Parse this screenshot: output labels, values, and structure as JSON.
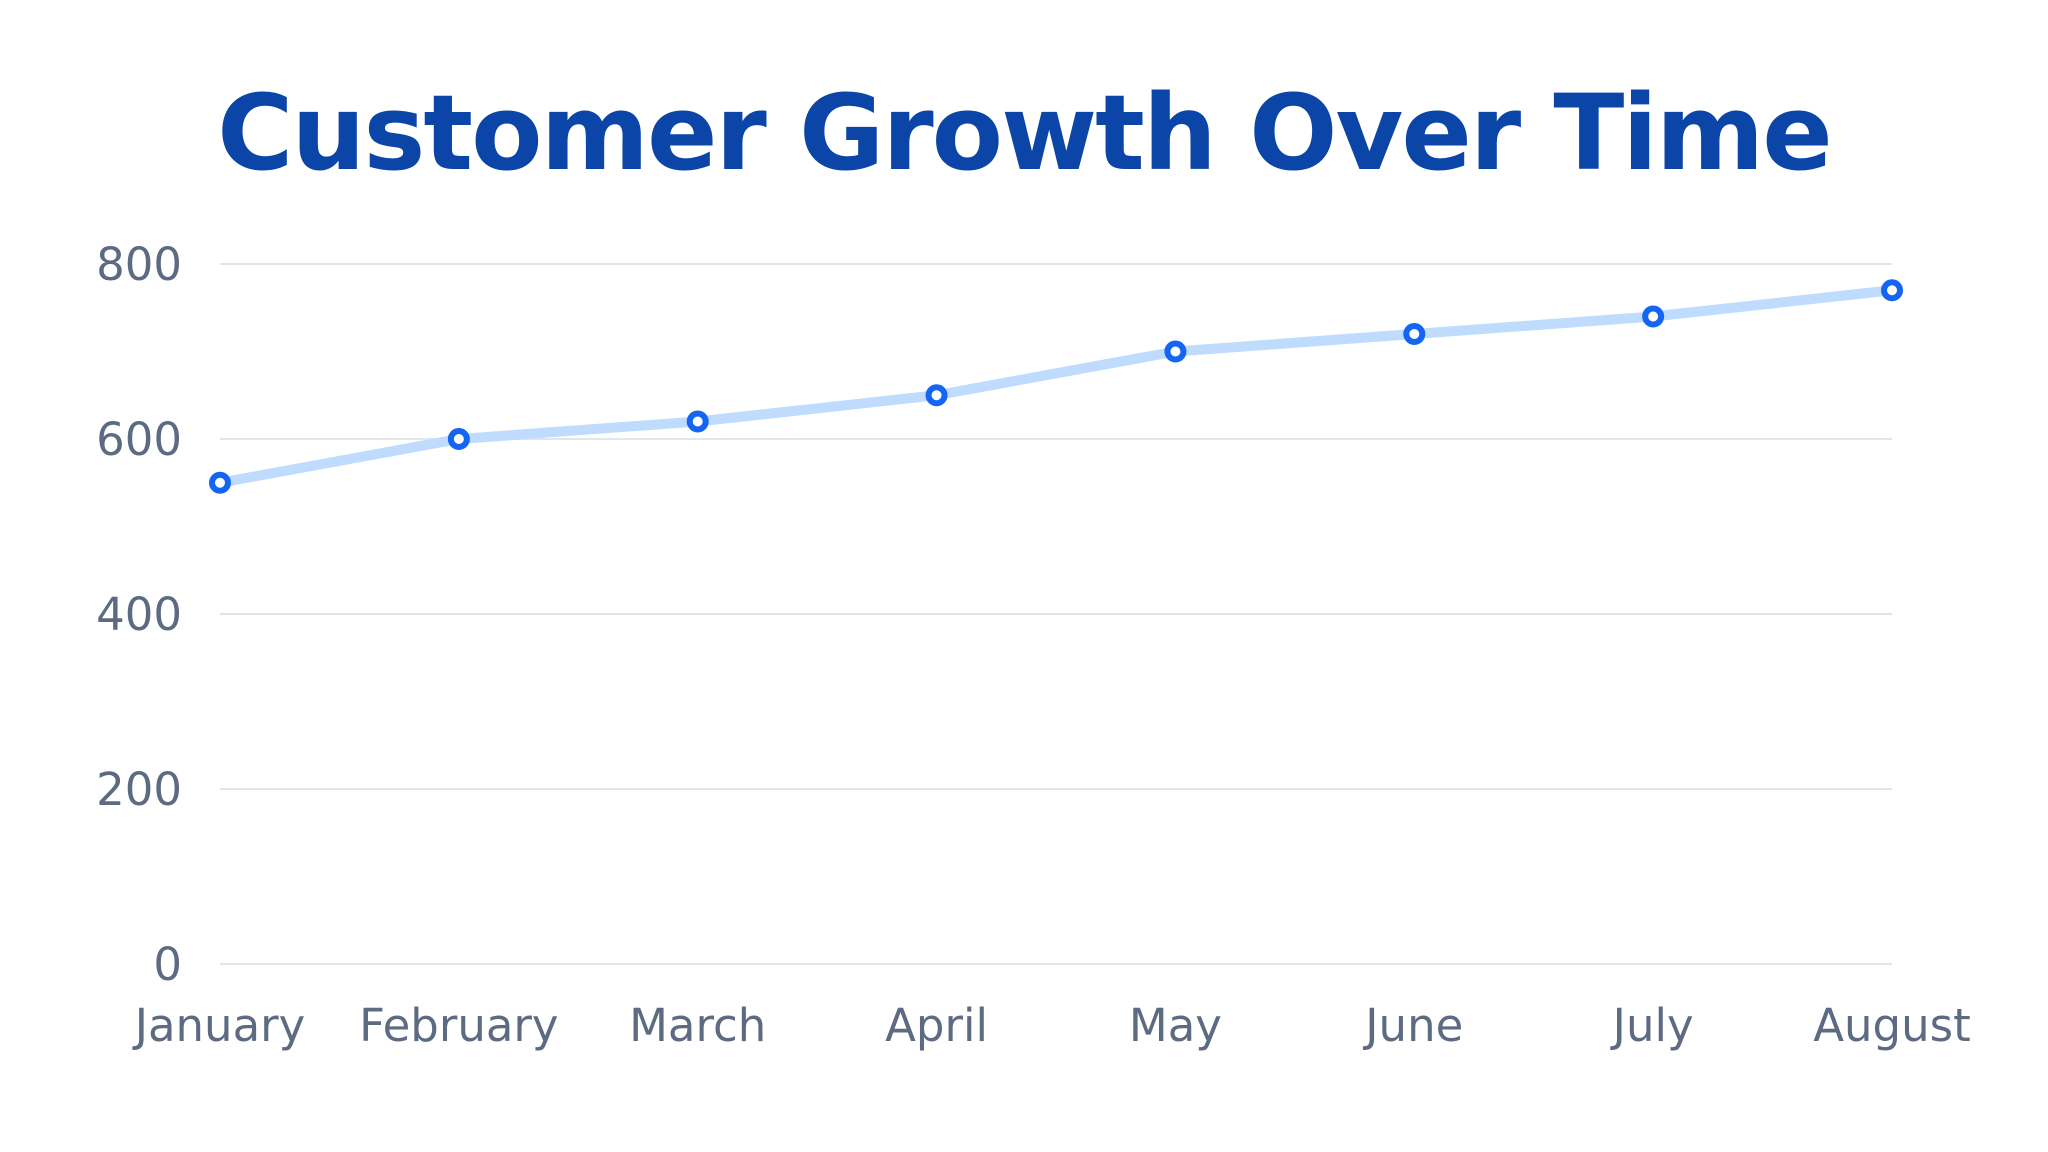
{
  "chart_data": {
    "type": "line",
    "title": "Customer Growth Over Time",
    "xlabel": "",
    "ylabel": "",
    "categories": [
      "January",
      "February",
      "March",
      "April",
      "May",
      "June",
      "July",
      "August"
    ],
    "series": [
      {
        "values": [
          550,
          600,
          620,
          650,
          700,
          720,
          740,
          770
        ]
      }
    ],
    "ylim": [
      0,
      800
    ],
    "yticks": [
      "0",
      "200",
      "400",
      "600",
      "800"
    ],
    "grid": true,
    "legend": "none"
  },
  "colors": {
    "title": "#0A45A7",
    "line": "#BFDBFE",
    "marker_stroke": "#1565F5",
    "marker_fill": "#FFFFFF",
    "grid": "#E2E6EC",
    "tick_text": "#5C6B82"
  }
}
